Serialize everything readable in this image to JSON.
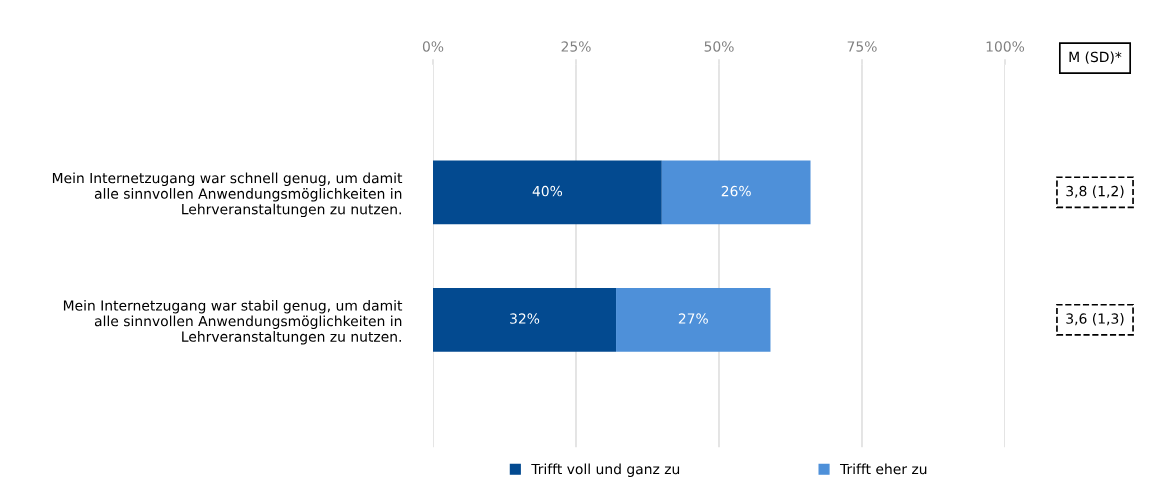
{
  "chart_data": {
    "type": "bar",
    "orientation": "horizontal",
    "stacked": true,
    "categories": [
      "Mein Internetzugang war schnell genug, um damit\nalle sinnvollen Anwendungsmöglichkeiten in\nLehrveranstaltungen zu nutzen.",
      "Mein Internetzugang war stabil genug, um damit\nalle sinnvollen Anwendungsmöglichkeiten in\nLehrveranstaltungen zu nutzen."
    ],
    "series": [
      {
        "name": "Trifft voll und ganz zu",
        "color": "#034a90",
        "values": [
          40,
          32
        ],
        "value_labels": [
          "40%",
          "32%"
        ]
      },
      {
        "name": "Trifft eher zu",
        "color": "#4e90d9",
        "values": [
          26,
          27
        ],
        "value_labels": [
          "26%",
          "27%"
        ]
      }
    ],
    "xlim": [
      0,
      100
    ],
    "xticks": [
      {
        "value": 0,
        "label": "0%"
      },
      {
        "value": 25,
        "label": "25%"
      },
      {
        "value": 50,
        "label": "50%"
      },
      {
        "value": 75,
        "label": "75%"
      },
      {
        "value": 100,
        "label": "100%"
      }
    ],
    "grid": "x",
    "legend": "bottom",
    "annotations": [
      "M (SD)*",
      "3,8 (1,2)",
      "3,6 (1,3)"
    ]
  }
}
